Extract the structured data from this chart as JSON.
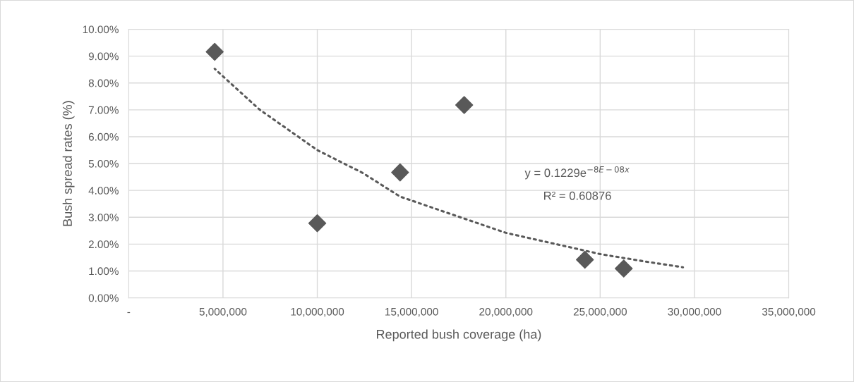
{
  "chart_data": {
    "type": "scatter",
    "xlabel": "Reported bush coverage (ha)",
    "ylabel": "Bush spread rates (%)",
    "series": [
      {
        "color": "#595959",
        "marker": "diamond",
        "x": [
          4560000,
          10000000,
          14390000,
          17790000,
          24190000,
          26250000
        ],
        "values": [
          9.16,
          2.78,
          4.67,
          7.18,
          1.42,
          1.09
        ]
      },
      {
        "type": "line",
        "color": "#595959",
        "line_style": "dotted",
        "x": [
          4560000,
          6940000,
          10000000,
          12410000,
          14390000,
          15630000,
          20000000,
          25000000,
          27580000,
          29390000
        ],
        "values": [
          8.53,
          7.01,
          5.5,
          4.65,
          3.77,
          3.47,
          2.42,
          1.63,
          1.33,
          1.14
        ]
      }
    ],
    "annotations": [
      "y = 0.1229e$^{−8E−08x}$",
      "R² = 0.60876"
    ],
    "xlim": [
      0,
      35000000
    ],
    "xticks": [
      {
        "value": 0,
        "label": "-"
      },
      {
        "value": 5000000,
        "label": "5,000,000"
      },
      {
        "value": 10000000,
        "label": "10,000,000"
      },
      {
        "value": 15000000,
        "label": "15,000,000"
      },
      {
        "value": 20000000,
        "label": "20,000,000"
      },
      {
        "value": 25000000,
        "label": "25,000,000"
      },
      {
        "value": 30000000,
        "label": "30,000,000"
      },
      {
        "value": 35000000,
        "label": "35,000,000"
      }
    ],
    "ylim": [
      0,
      10
    ],
    "yticks": [
      {
        "value": 0,
        "label": "0.00%"
      },
      {
        "value": 1,
        "label": "1.00%"
      },
      {
        "value": 2,
        "label": "2.00%"
      },
      {
        "value": 3,
        "label": "3.00%"
      },
      {
        "value": 4,
        "label": "4.00%"
      },
      {
        "value": 5,
        "label": "5.00%"
      },
      {
        "value": 6,
        "label": "6.00%"
      },
      {
        "value": 7,
        "label": "7.00%"
      },
      {
        "value": 8,
        "label": "8.00%"
      },
      {
        "value": 9,
        "label": "9.00%"
      },
      {
        "value": 10,
        "label": "10.00%"
      }
    ],
    "grid": true,
    "legend": false
  }
}
